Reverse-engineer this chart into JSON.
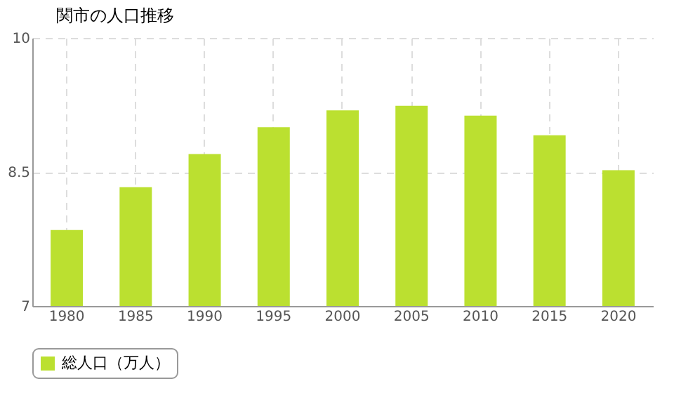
{
  "chart_data": {
    "type": "bar",
    "title": "関市の人口推移",
    "categories": [
      "1980",
      "1985",
      "1990",
      "1995",
      "2000",
      "2005",
      "2010",
      "2015",
      "2020"
    ],
    "series": [
      {
        "name": "総人口（万人）",
        "color": "#bbe030",
        "values": [
          7.85,
          8.33,
          8.7,
          9.0,
          9.19,
          9.24,
          9.13,
          8.91,
          8.52
        ]
      }
    ],
    "ylim": [
      7,
      10
    ],
    "yticks": [
      7,
      8.5,
      10
    ],
    "grid": true,
    "legend": "bottom"
  }
}
